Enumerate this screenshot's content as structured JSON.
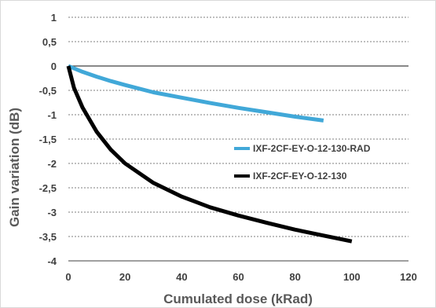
{
  "chart_data": {
    "type": "line",
    "title": "",
    "xlabel": "Cumulated dose (kRad)",
    "ylabel": "Gain variation (dB)",
    "xlim": [
      0,
      120
    ],
    "ylim": [
      -4,
      1
    ],
    "x_ticks": [
      0,
      20,
      40,
      60,
      80,
      100,
      120
    ],
    "y_ticks": [
      1,
      0.5,
      0,
      -0.5,
      -1,
      -1.5,
      -2,
      -2.5,
      -3,
      -3.5,
      -4
    ],
    "x_tick_labels": [
      "0",
      "20",
      "40",
      "60",
      "80",
      "100",
      "120"
    ],
    "y_tick_labels": [
      "1",
      "0,5",
      "0",
      "-0,5",
      "-1",
      "-1,5",
      "-2",
      "-2,5",
      "-3",
      "-3,5",
      "-4"
    ],
    "grid": "horizontal dashed",
    "legend": "inside right",
    "series": [
      {
        "name": "IXF-2CF-EY-O-12-130-RAD",
        "color": "#41a8d8",
        "x": [
          0,
          5,
          10,
          15,
          20,
          30,
          40,
          50,
          60,
          70,
          80,
          90
        ],
        "y": [
          0,
          -0.12,
          -0.22,
          -0.31,
          -0.39,
          -0.54,
          -0.65,
          -0.76,
          -0.86,
          -0.95,
          -1.04,
          -1.12
        ]
      },
      {
        "name": "IXF-2CF-EY-O-12-130",
        "color": "#000000",
        "x": [
          0,
          2,
          5,
          10,
          15,
          20,
          30,
          40,
          50,
          60,
          70,
          80,
          90,
          100
        ],
        "y": [
          0,
          -0.45,
          -0.85,
          -1.35,
          -1.72,
          -2.0,
          -2.4,
          -2.68,
          -2.9,
          -3.07,
          -3.22,
          -3.36,
          -3.48,
          -3.6
        ]
      }
    ]
  }
}
